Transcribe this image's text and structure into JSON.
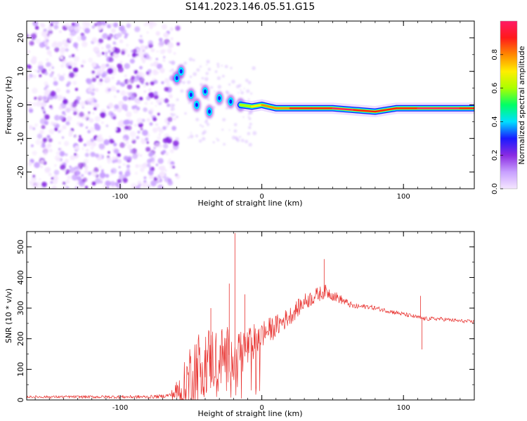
{
  "title": "S141.2023.146.05.51.G15",
  "colors": {
    "snr_line": "#e8322f",
    "signal_core": "#ff1a1a",
    "signal_halo": "#00e0ff",
    "noise": "#8a2be2",
    "axis": "#000000"
  },
  "colorbar": {
    "label": "Normalized spectral amplitude",
    "ticks": [
      "0.0",
      "0.2",
      "0.4",
      "0.6",
      "0.8"
    ],
    "tick_values": [
      0.0,
      0.2,
      0.4,
      0.6,
      0.8
    ],
    "range": [
      0,
      1
    ],
    "stops": [
      "#f5e6ff",
      "#c8a0ff",
      "#8a2be2",
      "#1a1aff",
      "#00e0ff",
      "#00ff66",
      "#aaff00",
      "#ffee00",
      "#ff8800",
      "#ff1a1a",
      "#ff1a66"
    ]
  },
  "chart_data": [
    {
      "type": "heatmap",
      "name": "spectrogram",
      "xlabel": "Height of straight line (km)",
      "ylabel": "Frequency (Hz)",
      "xlim": [
        -166,
        150
      ],
      "ylim": [
        -25,
        25
      ],
      "xticks": [
        -100,
        0,
        100
      ],
      "xtick_labels": [
        "-100",
        "0",
        "100"
      ],
      "yticks": [
        -20,
        -10,
        0,
        10,
        20
      ],
      "ytick_labels": [
        "-20",
        "-10",
        "0",
        "10",
        "20"
      ],
      "noise_region": [
        -166,
        -65
      ],
      "signal_track": [
        {
          "x": -60,
          "y": 8,
          "amp": 0.3
        },
        {
          "x": -57,
          "y": 10,
          "amp": 0.35
        },
        {
          "x": -50,
          "y": 3,
          "amp": 0.3
        },
        {
          "x": -46,
          "y": 0,
          "amp": 0.25
        },
        {
          "x": -40,
          "y": 4,
          "amp": 0.3
        },
        {
          "x": -37,
          "y": -2,
          "amp": 0.25
        },
        {
          "x": -30,
          "y": 2,
          "amp": 0.3
        },
        {
          "x": -22,
          "y": 1,
          "amp": 0.35
        },
        {
          "x": -15,
          "y": 0,
          "amp": 0.45
        },
        {
          "x": -7,
          "y": -0.5,
          "amp": 0.6
        },
        {
          "x": 0,
          "y": 0,
          "amp": 0.7
        },
        {
          "x": 10,
          "y": -1,
          "amp": 0.75
        },
        {
          "x": 20,
          "y": -1,
          "amp": 0.8
        },
        {
          "x": 35,
          "y": -1,
          "amp": 0.85
        },
        {
          "x": 50,
          "y": -1,
          "amp": 0.85
        },
        {
          "x": 65,
          "y": -1.5,
          "amp": 0.95
        },
        {
          "x": 80,
          "y": -2,
          "amp": 0.9
        },
        {
          "x": 95,
          "y": -1,
          "amp": 0.85
        },
        {
          "x": 110,
          "y": -1,
          "amp": 0.9
        },
        {
          "x": 125,
          "y": -1,
          "amp": 0.95
        },
        {
          "x": 140,
          "y": -1,
          "amp": 0.95
        },
        {
          "x": 150,
          "y": -1,
          "amp": 0.9
        }
      ]
    },
    {
      "type": "line",
      "name": "snr",
      "xlabel": "Height of straight line (km)",
      "ylabel": "SNR (10 * v/v)",
      "xlim": [
        -166,
        150
      ],
      "ylim": [
        0,
        550
      ],
      "xticks": [
        -100,
        0,
        100
      ],
      "xtick_labels": [
        "-100",
        "0",
        "100"
      ],
      "yticks": [
        0,
        100,
        200,
        300,
        400,
        500
      ],
      "ytick_labels": [
        "0",
        "100",
        "200",
        "300",
        "400",
        "500"
      ],
      "trend_x": [
        -166,
        -80,
        -70,
        -63,
        -55,
        -48,
        -40,
        -30,
        -20,
        -10,
        0,
        10,
        20,
        30,
        40,
        45,
        55,
        65,
        75,
        90,
        100,
        110,
        112,
        115,
        125,
        140,
        150
      ],
      "trend_y": [
        10,
        10,
        12,
        18,
        40,
        100,
        130,
        140,
        150,
        170,
        215,
        240,
        275,
        320,
        345,
        355,
        330,
        305,
        305,
        290,
        280,
        270,
        268,
        265,
        265,
        258,
        255
      ],
      "noise_amplitude": [
        [
          -166,
          4
        ],
        [
          -65,
          6
        ],
        [
          -60,
          40
        ],
        [
          -50,
          120
        ],
        [
          -35,
          110
        ],
        [
          -20,
          90
        ],
        [
          -10,
          70
        ],
        [
          0,
          45
        ],
        [
          20,
          30
        ],
        [
          40,
          25
        ],
        [
          60,
          12
        ],
        [
          70,
          8
        ],
        [
          150,
          6
        ]
      ],
      "spikes": [
        {
          "x": -36,
          "y": 300
        },
        {
          "x": -23,
          "y": 380
        },
        {
          "x": -19,
          "y": 545
        },
        {
          "x": -12,
          "y": 345
        },
        {
          "x": 44,
          "y": 460
        },
        {
          "x": 112,
          "y": 340
        },
        {
          "x": 113,
          "y": 165
        }
      ]
    }
  ]
}
